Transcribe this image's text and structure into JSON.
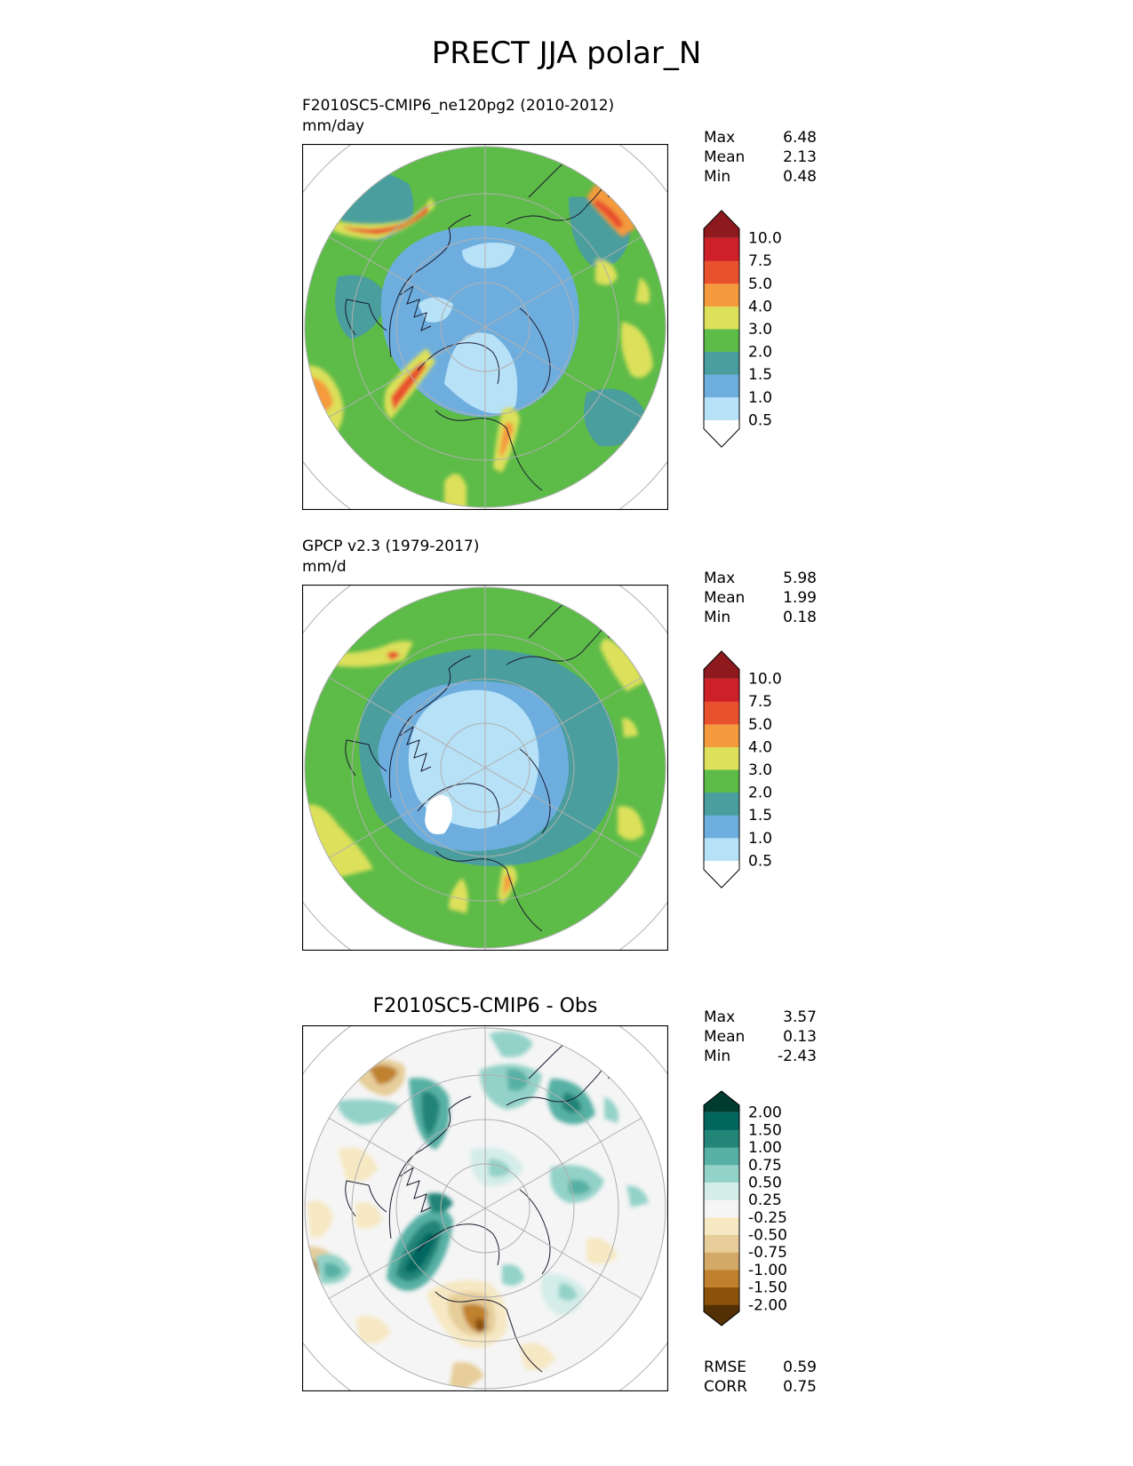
{
  "figure": {
    "title": "PRECT JJA polar_N"
  },
  "panels": [
    {
      "id": "test",
      "title_line1": "F2010SC5-CMIP6_ne120pg2 (2010-2012)",
      "title_line2": "mm/day",
      "stats": [
        {
          "label": "Max",
          "value": "6.48"
        },
        {
          "label": "Mean",
          "value": "2.13"
        },
        {
          "label": "Min",
          "value": "0.48"
        }
      ],
      "colorbar": {
        "extend": "both",
        "tick_labels": [
          "0.5",
          "1.0",
          "1.5",
          "2.0",
          "3.0",
          "4.0",
          "5.0",
          "7.5",
          "10.0"
        ],
        "colors": [
          "#ffffff",
          "#b7e1f7",
          "#6eaedf",
          "#4a9e9e",
          "#5dbb48",
          "#dce05a",
          "#f59a3d",
          "#e8502e",
          "#cd2028",
          "#8e1a1e"
        ]
      }
    },
    {
      "id": "reference",
      "title_line1": "GPCP v2.3 (1979-2017)",
      "title_line2": "mm/d",
      "stats": [
        {
          "label": "Max",
          "value": "5.98"
        },
        {
          "label": "Mean",
          "value": "1.99"
        },
        {
          "label": "Min",
          "value": "0.18"
        }
      ],
      "colorbar": {
        "extend": "both",
        "tick_labels": [
          "0.5",
          "1.0",
          "1.5",
          "2.0",
          "3.0",
          "4.0",
          "5.0",
          "7.5",
          "10.0"
        ],
        "colors": [
          "#ffffff",
          "#b7e1f7",
          "#6eaedf",
          "#4a9e9e",
          "#5dbb48",
          "#dce05a",
          "#f59a3d",
          "#e8502e",
          "#cd2028",
          "#8e1a1e"
        ]
      }
    },
    {
      "id": "difference",
      "title": "F2010SC5-CMIP6 - Obs",
      "stats": [
        {
          "label": "Max",
          "value": "3.57"
        },
        {
          "label": "Mean",
          "value": "0.13"
        },
        {
          "label": "Min",
          "value": "-2.43"
        }
      ],
      "metrics": [
        {
          "label": "RMSE",
          "value": "0.59"
        },
        {
          "label": "CORR",
          "value": "0.75"
        }
      ],
      "colorbar": {
        "extend": "both",
        "tick_labels": [
          "-2.00",
          "-1.50",
          "-1.00",
          "-0.75",
          "-0.50",
          "-0.25",
          "0.25",
          "0.50",
          "0.75",
          "1.00",
          "1.50",
          "2.00"
        ],
        "colors": [
          "#543005",
          "#8c510a",
          "#bf812d",
          "#d4a866",
          "#e6cd9a",
          "#f6e8c3",
          "#f5f5f5",
          "#d4ede9",
          "#93d2c8",
          "#57b0a4",
          "#238478",
          "#01665e",
          "#003c30"
        ]
      }
    }
  ]
}
